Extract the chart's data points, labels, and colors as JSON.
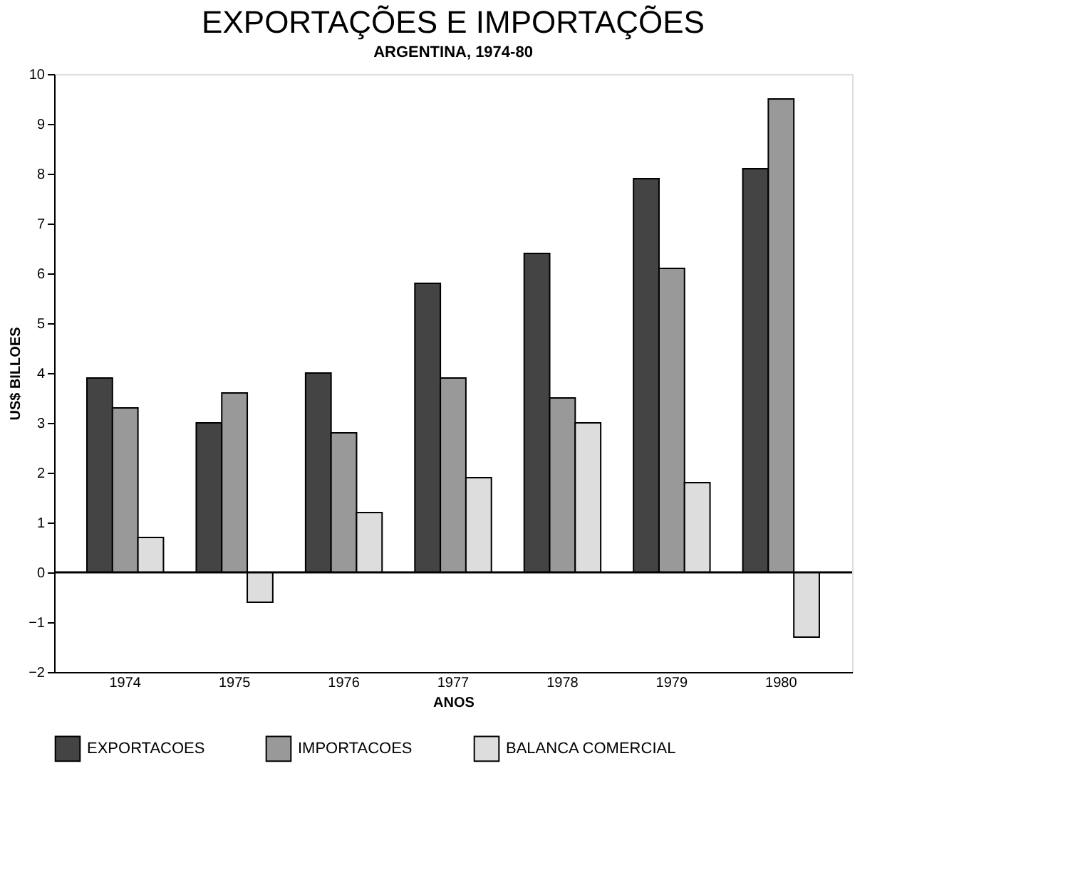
{
  "chart_data": {
    "type": "bar",
    "title": "EXPORTAÇÕES E IMPORTAÇÕES",
    "subtitle": "ARGENTINA, 1974-80",
    "xlabel": "ANOS",
    "ylabel": "US$ BILLOES",
    "categories": [
      "1974",
      "1975",
      "1976",
      "1977",
      "1978",
      "1979",
      "1980"
    ],
    "series": [
      {
        "name": "EXPORTACOES",
        "color": "#444444",
        "values": [
          3.9,
          3.0,
          4.0,
          5.8,
          6.4,
          7.9,
          8.1
        ]
      },
      {
        "name": "IMPORTACOES",
        "color": "#999999",
        "values": [
          3.3,
          3.6,
          2.8,
          3.9,
          3.5,
          6.1,
          9.5
        ]
      },
      {
        "name": "BALANCA COMERCIAL",
        "color": "#dddddd",
        "values": [
          0.7,
          -0.6,
          1.2,
          1.9,
          3.0,
          1.8,
          -1.3
        ]
      }
    ],
    "ylim": [
      -2,
      10
    ],
    "yticks": [
      -2,
      -1,
      0,
      1,
      2,
      3,
      4,
      5,
      6,
      7,
      8,
      9,
      10
    ],
    "ref_lines": [
      {
        "axis": "y",
        "value": 0,
        "color": "#000000"
      }
    ],
    "grid": false,
    "legend": "bottom"
  }
}
